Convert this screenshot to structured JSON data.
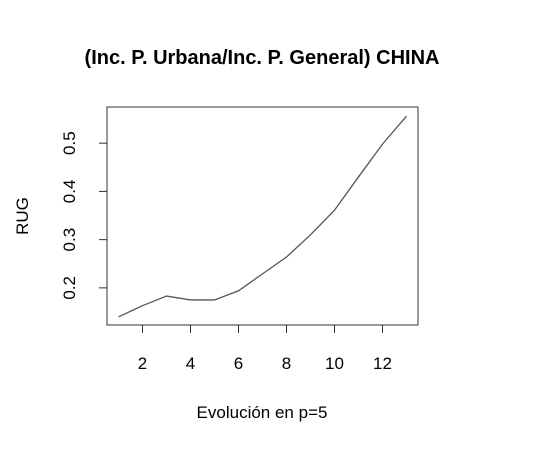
{
  "chart_data": {
    "type": "line",
    "title": "(Inc. P. Urbana/Inc. P. General) CHINA",
    "x_label": "Evolución en p=5",
    "y_label": "RUG",
    "x": [
      1,
      2,
      3,
      4,
      5,
      6,
      7,
      8,
      9,
      10,
      11,
      12,
      13
    ],
    "values": [
      0.14,
      0.163,
      0.183,
      0.175,
      0.175,
      0.194,
      0.229,
      0.264,
      0.31,
      0.361,
      0.43,
      0.498,
      0.556
    ],
    "color": "#555555",
    "xlim": [
      0.52,
      13.48
    ],
    "ylim": [
      0.123,
      0.575
    ],
    "xticks": [
      2,
      4,
      6,
      8,
      10,
      12
    ],
    "yticks": [
      0.2,
      0.3,
      0.4,
      0.5
    ]
  }
}
